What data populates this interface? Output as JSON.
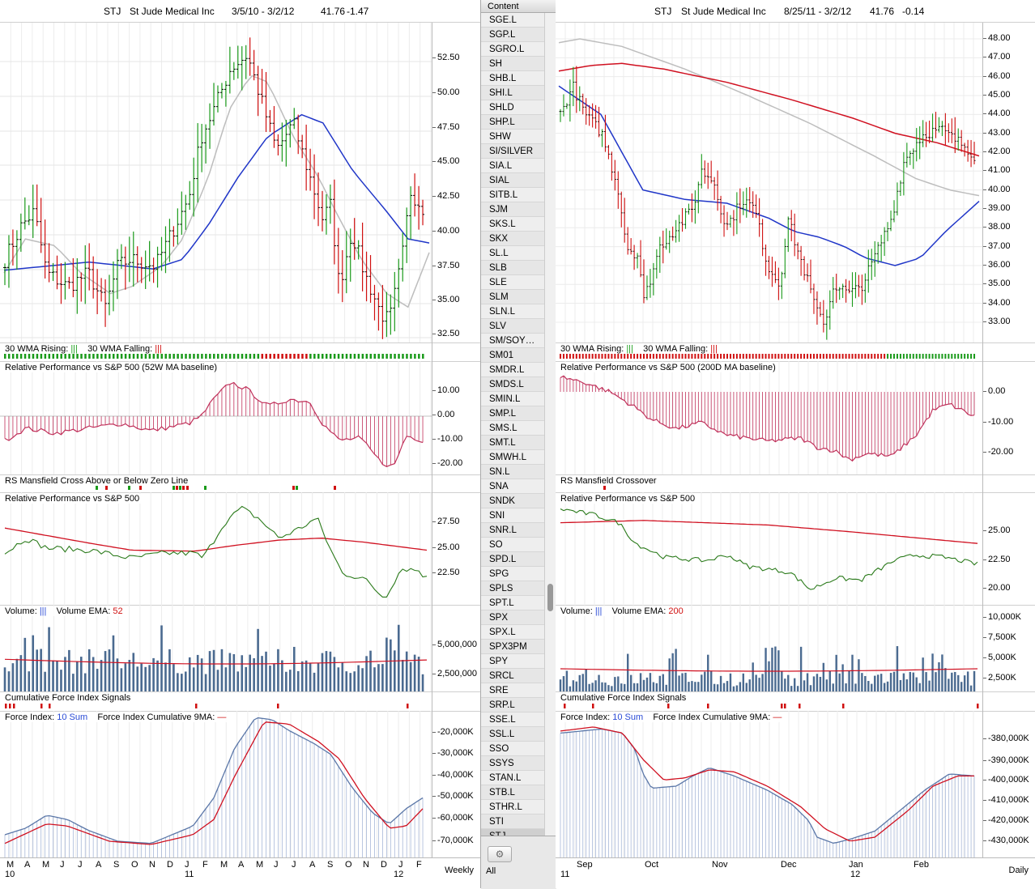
{
  "colors": {
    "bull": "#1a9a1a",
    "bear": "#d01010",
    "ma_blue": "#2036c8",
    "ma_gray": "#bdbdbd",
    "ma_red": "#d01020",
    "rp_red": "#c0305a",
    "vol": "#4a6a90",
    "fi_fill": "#5b77a8",
    "green_line": "#2a7a1a"
  },
  "sidebar": {
    "header": "Content",
    "items": [
      "SGE.L",
      "SGP.L",
      "SGRO.L",
      "SH",
      "SHB.L",
      "SHI.L",
      "SHLD",
      "SHP.L",
      "SHW",
      "SI/SILVER",
      "SIA.L",
      "SIAL",
      "SITB.L",
      "SJM",
      "SKS.L",
      "SKX",
      "SL.L",
      "SLB",
      "SLE",
      "SLM",
      "SLN.L",
      "SLV",
      "SM/SOY…",
      "SM01",
      "SMDR.L",
      "SMDS.L",
      "SMIN.L",
      "SMP.L",
      "SMS.L",
      "SMT.L",
      "SMWH.L",
      "SN.L",
      "SNA",
      "SNDK",
      "SNI",
      "SNR.L",
      "SO",
      "SPD.L",
      "SPG",
      "SPLS",
      "SPT.L",
      "SPX",
      "SPX.L",
      "SPX3PM",
      "SPY",
      "SRCL",
      "SRE",
      "SRP.L",
      "SSE.L",
      "SSL.L",
      "SSO",
      "SSYS",
      "STAN.L",
      "STB.L",
      "STHR.L",
      "STI",
      "STJ"
    ],
    "selected": "STJ",
    "footer_label": "All",
    "gear_icon": "⚙"
  },
  "left": {
    "title": {
      "ticker": "STJ",
      "name": "St Jude Medical Inc",
      "range": "3/5/10 - 3/2/12",
      "price": "41.76",
      "change": "-1.47"
    },
    "price_ticks": [
      "52.50",
      "50.00",
      "47.50",
      "45.00",
      "42.50",
      "40.00",
      "37.50",
      "35.00",
      "32.50"
    ],
    "wma": {
      "rising": "30 WMA Rising:",
      "rising_glyph": "|||",
      "falling": "30 WMA Falling:",
      "falling_glyph": "|||"
    },
    "rp52": {
      "label": "Relative Performance vs S&P 500 (52W MA baseline)",
      "ticks": [
        "10.00",
        "0.00",
        "-10.00",
        "-20.00"
      ]
    },
    "mansfield": {
      "label": "RS Mansfield Cross Above or Below Zero Line"
    },
    "rp": {
      "label": "Relative Performance vs S&P 500",
      "ticks": [
        "27.50",
        "25.00",
        "22.50"
      ]
    },
    "volume": {
      "label": "Volume:",
      "glyph": "|||",
      "ema_label": "Volume EMA:",
      "ema_value": "52",
      "ticks": [
        "5,000,000",
        "2,500,000"
      ]
    },
    "cfi": {
      "label": "Cumulative Force Index Signals"
    },
    "force": {
      "label": "Force Index:",
      "sum": "10 Sum",
      "cum_label": "Force Index Cumulative 9MA:",
      "ticks": [
        "-20,000K",
        "-30,000K",
        "-40,000K",
        "-50,000K",
        "-60,000K",
        "-70,000K"
      ]
    },
    "months": [
      "M",
      "A",
      "M",
      "J",
      "J",
      "A",
      "S",
      "O",
      "N",
      "D",
      "J",
      "F",
      "M",
      "A",
      "M",
      "J",
      "J",
      "A",
      "S",
      "O",
      "N",
      "D",
      "J",
      "F"
    ],
    "years": [
      "10",
      "11",
      "12"
    ],
    "period": "Weekly"
  },
  "right": {
    "title": {
      "ticker": "STJ",
      "name": "St Jude Medical Inc",
      "range": "8/25/11 - 3/2/12",
      "price": "41.76",
      "change": "-0.14"
    },
    "price_ticks": [
      "48.00",
      "47.00",
      "46.00",
      "45.00",
      "44.00",
      "43.00",
      "42.00",
      "41.00",
      "40.00",
      "39.00",
      "38.00",
      "37.00",
      "36.00",
      "35.00",
      "34.00",
      "33.00"
    ],
    "wma": {
      "rising": "30 WMA Rising:",
      "rising_glyph": "|||",
      "falling": "30 WMA Falling:",
      "falling_glyph": "|||"
    },
    "rp200": {
      "label": "Relative Performance vs S&P 500 (200D MA baseline)",
      "ticks": [
        "0.00",
        "-10.00",
        "-20.00"
      ]
    },
    "mansfield": {
      "label": "RS Mansfield Crossover"
    },
    "rp": {
      "label": "Relative Performance vs S&P 500",
      "ticks": [
        "25.00",
        "22.50",
        "20.00"
      ]
    },
    "volume": {
      "label": "Volume:",
      "glyph": "|||",
      "ema_label": "Volume EMA:",
      "ema_value": "200",
      "ticks": [
        "10,000K",
        "7,500K",
        "5,000K",
        "2,500K"
      ]
    },
    "cfi": {
      "label": "Cumulative Force Index Signals"
    },
    "force": {
      "label": "Force Index:",
      "sum": "10 Sum",
      "cum_label": "Force Index Cumulative 9MA:",
      "ticks": [
        "-380,000K",
        "-390,000K",
        "-400,000K",
        "-410,000K",
        "-420,000K",
        "-430,000K"
      ]
    },
    "months": [
      "Sep",
      "Oct",
      "Nov",
      "Dec",
      "Jan",
      "Feb"
    ],
    "years": [
      "11",
      "12"
    ],
    "period": "Daily"
  }
}
